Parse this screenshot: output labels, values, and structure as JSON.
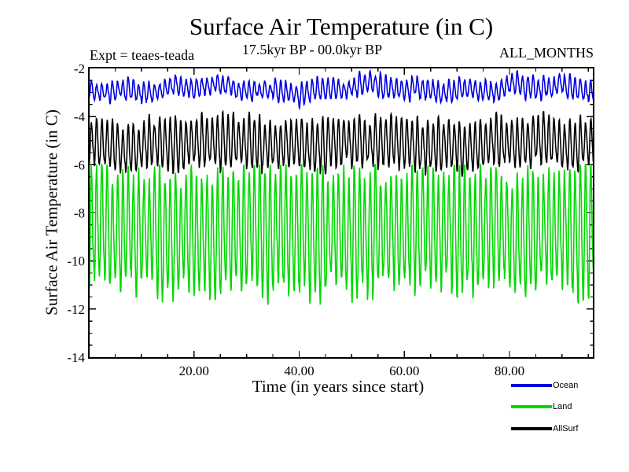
{
  "chart_data": {
    "type": "line",
    "title": "Surface Air Temperature (in C)",
    "header": {
      "experiment": "Expt = teaes-teada",
      "time_range": "17.5kyr BP - 00.0kyr BP",
      "months": "ALL_MONTHS"
    },
    "xlabel": "Time (in years since start)",
    "ylabel": "Surface Air Temperature (in C)",
    "x": {
      "min": 0,
      "max": 96,
      "major_ticks": [
        20,
        40,
        60,
        80
      ],
      "major_labels": [
        "20.00",
        "40.00",
        "60.00",
        "80.00"
      ],
      "minor_step": 5
    },
    "y": {
      "min": -14,
      "max": -2,
      "major_ticks": [
        -2,
        -4,
        -6,
        -8,
        -10,
        -12,
        -14
      ],
      "major_labels": [
        "-2",
        "-4",
        "-6",
        "-8",
        "-10",
        "-12",
        "-14"
      ],
      "minor_step": 0.5
    },
    "grid": false,
    "axis_color": "#000000",
    "samples_per_year": 12,
    "series": [
      {
        "name": "Ocean",
        "color": "#0000e0",
        "mean": -2.85,
        "seasonal_amplitude": 0.38,
        "second_harmonic": 0.05,
        "amplitude_jitter": 0.22,
        "noise": 0.1,
        "slow_amplitude": 0.12,
        "seed": 11,
        "approx_range": [
          -3.6,
          -2.2
        ]
      },
      {
        "name": "Land",
        "color": "#00d800",
        "mean": -8.8,
        "seasonal_amplitude": 2.3,
        "second_harmonic": 0.3,
        "amplitude_jitter": 0.18,
        "noise": 0.35,
        "slow_amplitude": 0.12,
        "seed": 23,
        "approx_range": [
          -11.9,
          -6.1
        ]
      },
      {
        "name": "AllSurf",
        "color": "#000000",
        "mean": -5.15,
        "seasonal_amplitude": 0.95,
        "second_harmonic": 0.12,
        "amplitude_jitter": 0.2,
        "noise": 0.15,
        "slow_amplitude": 0.1,
        "seed": 37,
        "approx_range": [
          -6.5,
          -3.9
        ]
      }
    ],
    "legend": {
      "position": "bottom-right"
    }
  }
}
